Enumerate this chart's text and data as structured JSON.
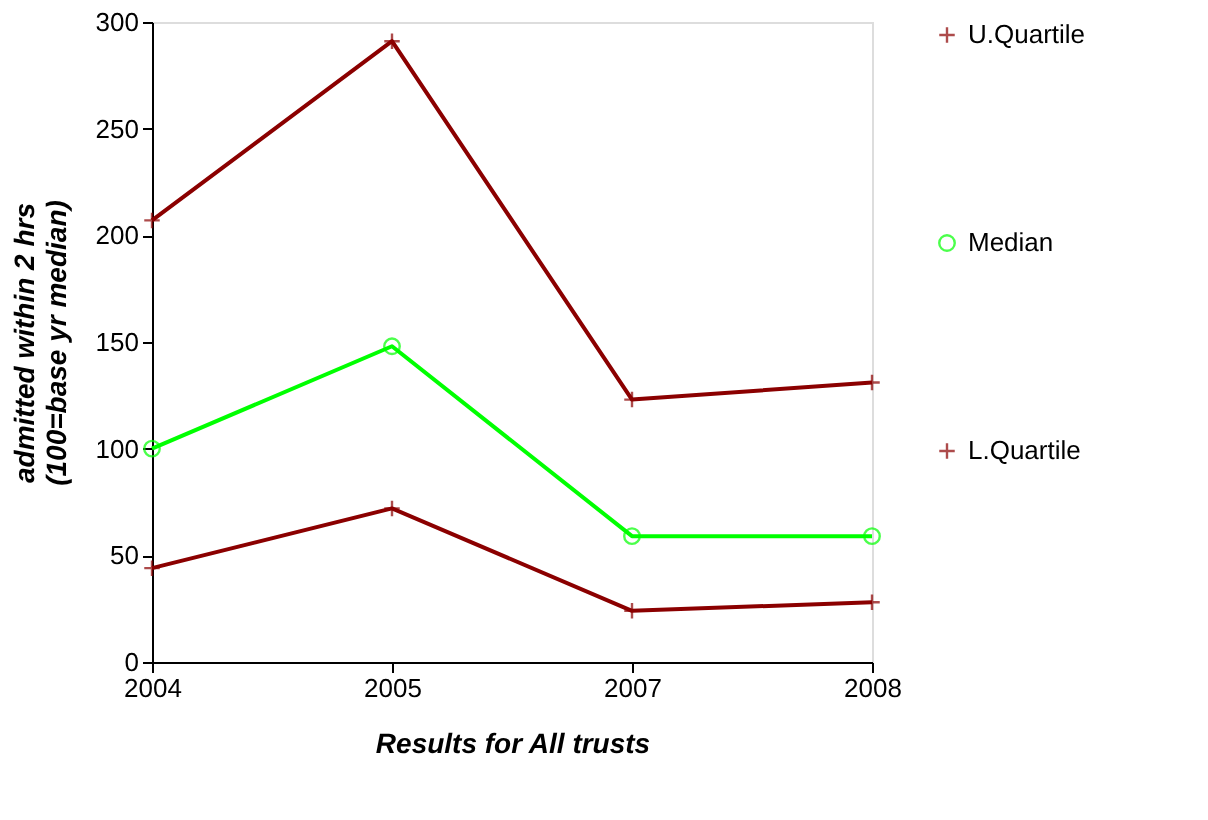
{
  "chart_data": {
    "type": "line",
    "xlabel": "Results for All trusts",
    "ylabel": "admitted within 2 hrs\n(100=base yr median)",
    "categories": [
      "2004",
      "2005",
      "2007",
      "2008"
    ],
    "series": [
      {
        "name": "U.Quartile",
        "color": "#8b0000",
        "marker": "cross",
        "values": [
          207,
          291,
          123,
          131
        ]
      },
      {
        "name": "Median",
        "color": "#00ff00",
        "marker": "circle",
        "values": [
          100,
          148,
          59,
          59
        ]
      },
      {
        "name": "L.Quartile",
        "color": "#8b0000",
        "marker": "cross",
        "values": [
          44,
          72,
          24,
          28
        ]
      }
    ],
    "ylim": [
      0,
      300
    ],
    "yticks": [
      0,
      50,
      100,
      150,
      200,
      250,
      300
    ],
    "grid": false,
    "legend": "right",
    "line_style": "solid"
  }
}
